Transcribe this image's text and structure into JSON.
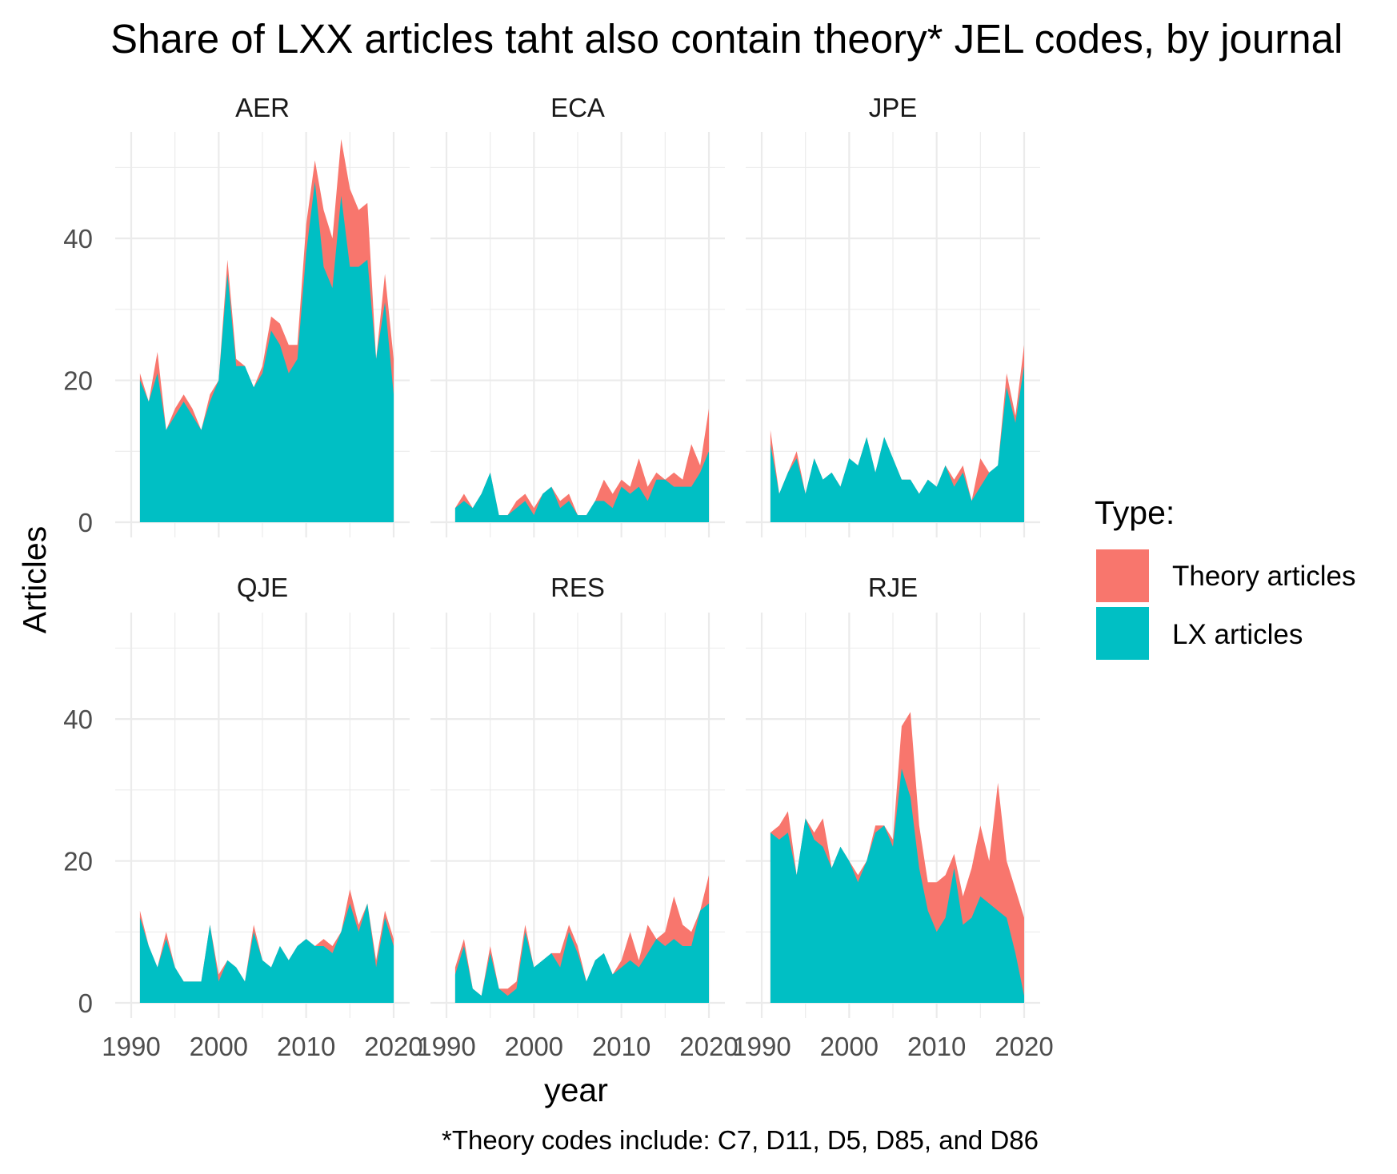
{
  "chart_data": {
    "type": "area",
    "title": "Share of LXX articles taht also contain theory* JEL codes, by journal",
    "xlabel": "year",
    "ylabel": "Articles",
    "caption": "*Theory codes include: C7, D11, D5, D85, and D86",
    "legend": {
      "title": "Type:",
      "placement": "right",
      "entries": [
        {
          "label": "Theory articles",
          "color": "#F8766D"
        },
        {
          "label": "LX articles",
          "color": "#00BFC4"
        }
      ]
    },
    "facets": [
      "AER",
      "ECA",
      "JPE",
      "QJE",
      "RES",
      "RJE"
    ],
    "xlim": [
      1990,
      2020
    ],
    "ylim": [
      0,
      55
    ],
    "x_ticks": [
      1990,
      2000,
      2010,
      2020
    ],
    "y_ticks": [
      0,
      20,
      40
    ],
    "grid": true,
    "x": [
      1991,
      1992,
      1993,
      1994,
      1995,
      1996,
      1997,
      1998,
      1999,
      2000,
      2001,
      2002,
      2003,
      2004,
      2005,
      2006,
      2007,
      2008,
      2009,
      2010,
      2011,
      2012,
      2013,
      2014,
      2015,
      2016,
      2017,
      2018,
      2019,
      2020
    ],
    "panels": [
      {
        "journal": "AER",
        "series": [
          {
            "name": "Theory articles",
            "values": [
              21,
              17,
              24,
              13,
              16,
              18,
              16,
              13,
              18,
              20,
              37,
              23,
              22,
              19,
              22,
              29,
              28,
              25,
              25,
              42,
              51,
              44,
              40,
              54,
              47,
              44,
              45,
              23,
              35,
              23
            ]
          },
          {
            "name": "LX articles",
            "values": [
              20,
              17,
              21,
              13,
              15,
              17,
              15,
              13,
              17,
              20,
              35,
              22,
              22,
              19,
              21,
              27,
              25,
              21,
              23,
              38,
              48,
              36,
              33,
              46,
              36,
              36,
              37,
              23,
              31,
              18
            ]
          }
        ]
      },
      {
        "journal": "ECA",
        "series": [
          {
            "name": "Theory articles",
            "values": [
              2,
              4,
              2,
              4,
              7,
              1,
              1,
              3,
              4,
              2,
              4,
              5,
              3,
              4,
              1,
              1,
              3,
              6,
              4,
              6,
              5,
              9,
              5,
              7,
              6,
              7,
              6,
              11,
              8,
              16
            ]
          },
          {
            "name": "LX articles",
            "values": [
              2,
              3,
              2,
              4,
              7,
              1,
              1,
              2,
              3,
              1,
              4,
              5,
              2,
              3,
              1,
              1,
              3,
              3,
              2,
              5,
              4,
              5,
              3,
              6,
              6,
              5,
              5,
              5,
              7,
              10
            ]
          }
        ]
      },
      {
        "journal": "JPE",
        "series": [
          {
            "name": "Theory articles",
            "values": [
              13,
              4,
              7,
              10,
              4,
              9,
              6,
              7,
              5,
              9,
              8,
              12,
              7,
              12,
              9,
              6,
              6,
              4,
              6,
              5,
              8,
              6,
              8,
              3,
              9,
              7,
              8,
              21,
              15,
              25
            ]
          },
          {
            "name": "LX articles",
            "values": [
              11,
              4,
              7,
              9,
              4,
              9,
              6,
              7,
              5,
              9,
              8,
              12,
              7,
              12,
              9,
              6,
              6,
              4,
              6,
              5,
              8,
              5,
              7,
              3,
              5,
              7,
              8,
              19,
              14,
              22
            ]
          }
        ]
      },
      {
        "journal": "QJE",
        "series": [
          {
            "name": "Theory articles",
            "values": [
              13,
              8,
              5,
              10,
              5,
              3,
              3,
              3,
              11,
              4,
              6,
              5,
              3,
              11,
              6,
              5,
              8,
              6,
              8,
              9,
              8,
              9,
              8,
              10,
              16,
              11,
              14,
              6,
              13,
              9
            ]
          },
          {
            "name": "LX articles",
            "values": [
              12,
              8,
              5,
              9,
              5,
              3,
              3,
              3,
              11,
              3,
              6,
              5,
              3,
              10,
              6,
              5,
              8,
              6,
              8,
              9,
              8,
              8,
              7,
              10,
              14,
              10,
              14,
              5,
              12,
              8
            ]
          }
        ]
      },
      {
        "journal": "RES",
        "series": [
          {
            "name": "Theory articles",
            "values": [
              5,
              9,
              2,
              1,
              8,
              2,
              2,
              3,
              11,
              5,
              6,
              7,
              7,
              11,
              8,
              3,
              6,
              7,
              4,
              6,
              10,
              6,
              11,
              9,
              10,
              15,
              11,
              10,
              13,
              18
            ]
          },
          {
            "name": "LX articles",
            "values": [
              4,
              8,
              2,
              1,
              7,
              2,
              1,
              2,
              10,
              5,
              6,
              7,
              5,
              10,
              7,
              3,
              6,
              7,
              4,
              5,
              6,
              5,
              7,
              9,
              8,
              9,
              8,
              8,
              13,
              14
            ]
          }
        ]
      },
      {
        "journal": "RJE",
        "series": [
          {
            "name": "Theory articles",
            "values": [
              24,
              25,
              27,
              18,
              26,
              24,
              26,
              19,
              22,
              20,
              18,
              20,
              25,
              25,
              23,
              39,
              41,
              25,
              17,
              17,
              18,
              21,
              15,
              19,
              25,
              20,
              31,
              20,
              16,
              12
            ]
          },
          {
            "name": "LX articles",
            "values": [
              24,
              23,
              24,
              18,
              26,
              23,
              22,
              19,
              22,
              20,
              17,
              20,
              24,
              25,
              22,
              33,
              29,
              19,
              13,
              10,
              12,
              19,
              11,
              12,
              15,
              14,
              13,
              12,
              7,
              1
            ]
          }
        ]
      }
    ]
  }
}
